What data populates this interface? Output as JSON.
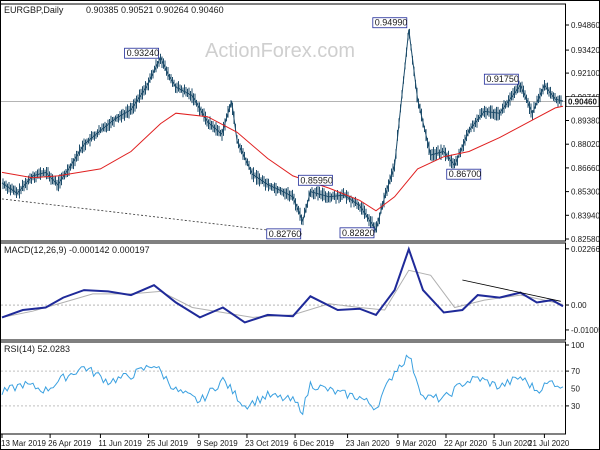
{
  "chart_data": [
    {
      "type": "candlestick",
      "name_label": "EURGBP,Daily",
      "ohlc_label": "0.90385 0.90521 0.90264 0.90460",
      "watermark": "ActionForex.com",
      "y_ticks": [
        "0.94860",
        "0.93420",
        "0.92100",
        "0.90740",
        "0.89380",
        "0.88020",
        "0.86660",
        "0.85300",
        "0.83940",
        "0.82580"
      ],
      "ylim": [
        0.8258,
        0.9595
      ],
      "current_price": "0.90460",
      "current_value": 0.9046,
      "annotations": [
        {
          "label": "0.93240",
          "date": "2019-08-05",
          "value": 0.9324
        },
        {
          "label": "0.85950",
          "date": "2019-12-20",
          "value": 0.8595
        },
        {
          "label": "0.82760",
          "date": "2019-12-13",
          "value": 0.8276
        },
        {
          "label": "0.82820",
          "date": "2020-02-18",
          "value": 0.8282
        },
        {
          "label": "0.94990",
          "date": "2020-03-19",
          "value": 0.9499
        },
        {
          "label": "0.86700",
          "date": "2020-04-30",
          "value": 0.867
        },
        {
          "label": "0.91750",
          "date": "2020-06-29",
          "value": 0.9175
        }
      ],
      "trendline": {
        "from": {
          "date": "2019-03-13",
          "value": 0.8488
        },
        "to": {
          "date": "2019-12-13",
          "value": 0.8286
        }
      },
      "x_ticks": [
        "13 Mar 2019",
        "26 Apr 2019",
        "11 Jun 2019",
        "25 Jul 2019",
        "9 Sep 2019",
        "23 Oct 2019",
        "6 Dec 2019",
        "23 Jan 2020",
        "9 Mar 2020",
        "22 Apr 2020",
        "5 Jun 2020",
        "21 Jul 2020"
      ],
      "series": [
        {
          "kind": "price",
          "points": [
            {
              "date": "2019-03-13",
              "value": 0.858
            },
            {
              "date": "2019-03-27",
              "value": 0.852
            },
            {
              "date": "2019-04-10",
              "value": 0.862
            },
            {
              "date": "2019-04-22",
              "value": 0.864
            },
            {
              "date": "2019-05-03",
              "value": 0.857
            },
            {
              "date": "2019-05-14",
              "value": 0.867
            },
            {
              "date": "2019-05-27",
              "value": 0.88
            },
            {
              "date": "2019-06-11",
              "value": 0.888
            },
            {
              "date": "2019-06-25",
              "value": 0.895
            },
            {
              "date": "2019-07-09",
              "value": 0.9
            },
            {
              "date": "2019-07-23",
              "value": 0.913
            },
            {
              "date": "2019-08-05",
              "value": 0.93
            },
            {
              "date": "2019-08-12",
              "value": 0.92
            },
            {
              "date": "2019-08-19",
              "value": 0.913
            },
            {
              "date": "2019-09-03",
              "value": 0.908
            },
            {
              "date": "2019-09-17",
              "value": 0.893
            },
            {
              "date": "2019-09-30",
              "value": 0.886
            },
            {
              "date": "2019-10-09",
              "value": 0.905
            },
            {
              "date": "2019-10-14",
              "value": 0.882
            },
            {
              "date": "2019-10-28",
              "value": 0.863
            },
            {
              "date": "2019-11-11",
              "value": 0.857
            },
            {
              "date": "2019-11-25",
              "value": 0.853
            },
            {
              "date": "2019-12-04",
              "value": 0.85
            },
            {
              "date": "2019-12-13",
              "value": 0.836
            },
            {
              "date": "2019-12-20",
              "value": 0.853
            },
            {
              "date": "2020-01-06",
              "value": 0.85
            },
            {
              "date": "2020-01-20",
              "value": 0.851
            },
            {
              "date": "2020-02-03",
              "value": 0.845
            },
            {
              "date": "2020-02-18",
              "value": 0.831
            },
            {
              "date": "2020-02-26",
              "value": 0.85
            },
            {
              "date": "2020-03-06",
              "value": 0.868
            },
            {
              "date": "2020-03-19",
              "value": 0.946
            },
            {
              "date": "2020-03-27",
              "value": 0.906
            },
            {
              "date": "2020-04-08",
              "value": 0.874
            },
            {
              "date": "2020-04-20",
              "value": 0.876
            },
            {
              "date": "2020-04-30",
              "value": 0.868
            },
            {
              "date": "2020-05-13",
              "value": 0.888
            },
            {
              "date": "2020-05-27",
              "value": 0.899
            },
            {
              "date": "2020-06-10",
              "value": 0.898
            },
            {
              "date": "2020-06-29",
              "value": 0.914
            },
            {
              "date": "2020-07-10",
              "value": 0.898
            },
            {
              "date": "2020-07-21",
              "value": 0.914
            },
            {
              "date": "2020-07-31",
              "value": 0.906
            },
            {
              "date": "2020-08-07",
              "value": 0.905
            }
          ]
        },
        {
          "kind": "moving-average",
          "points": [
            {
              "date": "2019-03-13",
              "value": 0.864
            },
            {
              "date": "2019-04-10",
              "value": 0.861
            },
            {
              "date": "2019-05-03",
              "value": 0.862
            },
            {
              "date": "2019-06-11",
              "value": 0.866
            },
            {
              "date": "2019-07-09",
              "value": 0.876
            },
            {
              "date": "2019-08-05",
              "value": 0.892
            },
            {
              "date": "2019-08-19",
              "value": 0.898
            },
            {
              "date": "2019-09-17",
              "value": 0.896
            },
            {
              "date": "2019-10-14",
              "value": 0.887
            },
            {
              "date": "2019-11-11",
              "value": 0.872
            },
            {
              "date": "2019-12-04",
              "value": 0.862
            },
            {
              "date": "2020-01-06",
              "value": 0.855
            },
            {
              "date": "2020-02-03",
              "value": 0.848
            },
            {
              "date": "2020-02-18",
              "value": 0.842
            },
            {
              "date": "2020-03-06",
              "value": 0.85
            },
            {
              "date": "2020-03-27",
              "value": 0.866
            },
            {
              "date": "2020-04-20",
              "value": 0.873
            },
            {
              "date": "2020-05-13",
              "value": 0.876
            },
            {
              "date": "2020-06-10",
              "value": 0.884
            },
            {
              "date": "2020-07-10",
              "value": 0.894
            },
            {
              "date": "2020-07-31",
              "value": 0.901
            },
            {
              "date": "2020-08-07",
              "value": 0.902
            }
          ]
        }
      ]
    },
    {
      "type": "line",
      "name_label": "MACD(12,26,9) -0.000142 0.000197",
      "y_ticks": [
        "0.022662",
        "0.00",
        "-0.010052"
      ],
      "ylim": [
        -0.0133,
        0.0238
      ],
      "current_value_label": "0.00",
      "trendline": {
        "from": {
          "date": "2020-05-07",
          "value": 0.0101
        },
        "to": {
          "date": "2020-08-05",
          "value": 0.0015
        }
      },
      "series": [
        {
          "kind": "macd",
          "points": [
            {
              "date": "2019-03-13",
              "value": -0.005
            },
            {
              "date": "2019-04-01",
              "value": -0.002
            },
            {
              "date": "2019-04-22",
              "value": -0.001
            },
            {
              "date": "2019-05-08",
              "value": 0.003
            },
            {
              "date": "2019-05-27",
              "value": 0.006
            },
            {
              "date": "2019-06-18",
              "value": 0.0055
            },
            {
              "date": "2019-07-09",
              "value": 0.004
            },
            {
              "date": "2019-07-30",
              "value": 0.008
            },
            {
              "date": "2019-08-19",
              "value": 0.001
            },
            {
              "date": "2019-09-10",
              "value": -0.005
            },
            {
              "date": "2019-10-01",
              "value": -0.001
            },
            {
              "date": "2019-10-21",
              "value": -0.007
            },
            {
              "date": "2019-11-11",
              "value": -0.004
            },
            {
              "date": "2019-12-04",
              "value": -0.0045
            },
            {
              "date": "2019-12-20",
              "value": 0.0035
            },
            {
              "date": "2020-01-14",
              "value": -0.002
            },
            {
              "date": "2020-02-03",
              "value": -0.0015
            },
            {
              "date": "2020-02-18",
              "value": -0.004
            },
            {
              "date": "2020-03-06",
              "value": 0.006
            },
            {
              "date": "2020-03-19",
              "value": 0.0225
            },
            {
              "date": "2020-04-01",
              "value": 0.006
            },
            {
              "date": "2020-04-20",
              "value": -0.003
            },
            {
              "date": "2020-05-07",
              "value": -0.002
            },
            {
              "date": "2020-05-21",
              "value": 0.004
            },
            {
              "date": "2020-06-10",
              "value": 0.003
            },
            {
              "date": "2020-06-29",
              "value": 0.005
            },
            {
              "date": "2020-07-14",
              "value": 0.001
            },
            {
              "date": "2020-07-28",
              "value": 0.002
            },
            {
              "date": "2020-08-07",
              "value": -0.0005
            }
          ]
        },
        {
          "kind": "signal",
          "points": [
            {
              "date": "2019-03-13",
              "value": -0.005
            },
            {
              "date": "2019-04-10",
              "value": -0.0025
            },
            {
              "date": "2019-05-08",
              "value": 0.001
            },
            {
              "date": "2019-06-04",
              "value": 0.0045
            },
            {
              "date": "2019-07-09",
              "value": 0.0045
            },
            {
              "date": "2019-08-05",
              "value": 0.0055
            },
            {
              "date": "2019-09-03",
              "value": -0.001
            },
            {
              "date": "2019-10-01",
              "value": -0.003
            },
            {
              "date": "2019-10-28",
              "value": -0.005
            },
            {
              "date": "2019-12-04",
              "value": -0.004
            },
            {
              "date": "2020-01-06",
              "value": 0.0005
            },
            {
              "date": "2020-02-03",
              "value": -0.001
            },
            {
              "date": "2020-02-26",
              "value": -0.002
            },
            {
              "date": "2020-03-19",
              "value": 0.014
            },
            {
              "date": "2020-04-08",
              "value": 0.012
            },
            {
              "date": "2020-04-30",
              "value": -0.001
            },
            {
              "date": "2020-05-27",
              "value": 0.002
            },
            {
              "date": "2020-06-29",
              "value": 0.004
            },
            {
              "date": "2020-07-21",
              "value": 0.002
            },
            {
              "date": "2020-08-07",
              "value": 0.0002
            }
          ]
        }
      ]
    },
    {
      "type": "line",
      "name_label": "RSI(14) 52.0283",
      "y_ticks": [
        "100",
        "70",
        "30",
        "0"
      ],
      "ylim": [
        0,
        100
      ],
      "levels": [
        70,
        30
      ],
      "current_value_label": "50",
      "series": [
        {
          "kind": "rsi",
          "points": [
            {
              "date": "2019-03-13",
              "value": 45
            },
            {
              "date": "2019-04-01",
              "value": 55
            },
            {
              "date": "2019-04-22",
              "value": 48
            },
            {
              "date": "2019-05-08",
              "value": 62
            },
            {
              "date": "2019-05-27",
              "value": 75
            },
            {
              "date": "2019-06-18",
              "value": 58
            },
            {
              "date": "2019-07-09",
              "value": 65
            },
            {
              "date": "2019-07-30",
              "value": 78
            },
            {
              "date": "2019-08-19",
              "value": 48
            },
            {
              "date": "2019-09-10",
              "value": 35
            },
            {
              "date": "2019-10-01",
              "value": 60
            },
            {
              "date": "2019-10-21",
              "value": 30
            },
            {
              "date": "2019-11-11",
              "value": 42
            },
            {
              "date": "2019-12-04",
              "value": 36
            },
            {
              "date": "2019-12-13",
              "value": 25
            },
            {
              "date": "2019-12-20",
              "value": 55
            },
            {
              "date": "2020-01-14",
              "value": 45
            },
            {
              "date": "2020-02-03",
              "value": 40
            },
            {
              "date": "2020-02-18",
              "value": 28
            },
            {
              "date": "2020-03-06",
              "value": 70
            },
            {
              "date": "2020-03-19",
              "value": 88
            },
            {
              "date": "2020-04-01",
              "value": 40
            },
            {
              "date": "2020-04-20",
              "value": 38
            },
            {
              "date": "2020-05-07",
              "value": 56
            },
            {
              "date": "2020-05-21",
              "value": 62
            },
            {
              "date": "2020-06-10",
              "value": 52
            },
            {
              "date": "2020-06-29",
              "value": 63
            },
            {
              "date": "2020-07-14",
              "value": 48
            },
            {
              "date": "2020-07-28",
              "value": 58
            },
            {
              "date": "2020-08-07",
              "value": 52
            }
          ]
        }
      ]
    }
  ]
}
